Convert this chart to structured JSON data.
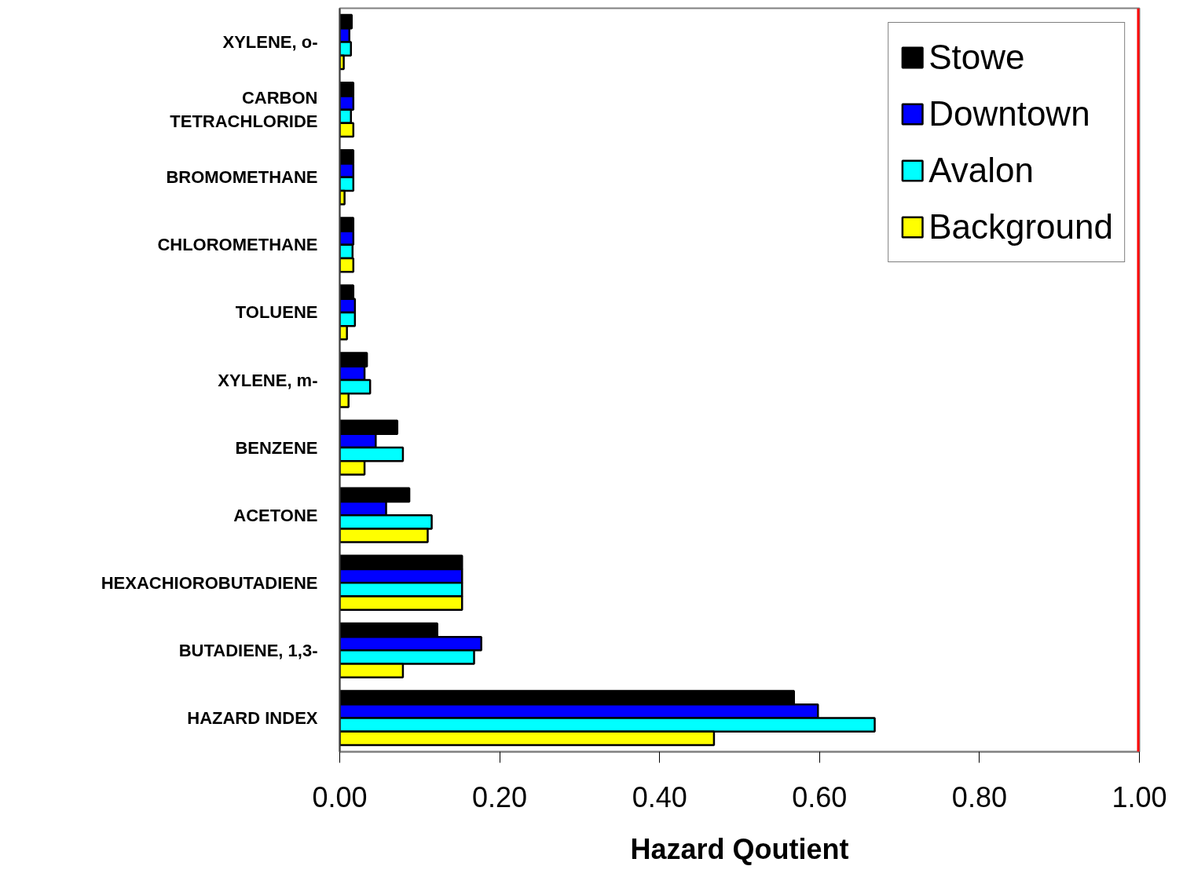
{
  "chart_data": {
    "type": "bar",
    "orientation": "horizontal",
    "xlabel": "Hazard Qoutient",
    "categories": [
      "XYLENE, o-",
      "CARBON TETRACHLORIDE",
      "BROMOMETHANE",
      "CHLOROMETHANE",
      "TOLUENE",
      "XYLENE, m-",
      "BENZENE",
      "ACETONE",
      "HEXACHIOROBUTADIENE",
      "BUTADIENE, 1,3-",
      "HAZARD INDEX"
    ],
    "series": [
      {
        "name": "Stowe",
        "color": "#000000",
        "values": [
          0.015,
          0.017,
          0.017,
          0.017,
          0.017,
          0.034,
          0.072,
          0.087,
          0.153,
          0.122,
          0.568
        ]
      },
      {
        "name": "Downtown",
        "color": "#0000ff",
        "values": [
          0.012,
          0.017,
          0.017,
          0.017,
          0.019,
          0.031,
          0.045,
          0.058,
          0.153,
          0.177,
          0.598
        ]
      },
      {
        "name": "Avalon",
        "color": "#00ffff",
        "values": [
          0.014,
          0.014,
          0.017,
          0.016,
          0.019,
          0.038,
          0.079,
          0.115,
          0.153,
          0.168,
          0.669
        ]
      },
      {
        "name": "Background",
        "color": "#ffff00",
        "values": [
          0.005,
          0.017,
          0.006,
          0.017,
          0.009,
          0.011,
          0.031,
          0.11,
          0.153,
          0.079,
          0.468
        ]
      }
    ],
    "xlim": [
      0,
      1.0
    ],
    "xticks": [
      {
        "value": 0,
        "label": "0.00"
      },
      {
        "value": 0.2,
        "label": "0.20"
      },
      {
        "value": 0.4,
        "label": "0.40"
      },
      {
        "value": 0.6,
        "label": "0.60"
      },
      {
        "value": 0.8,
        "label": "0.80"
      },
      {
        "value": 1.0,
        "label": "1.00"
      }
    ],
    "ref_lines": [
      {
        "axis": "x",
        "value": 1.0,
        "label": null,
        "color": "#ff0000"
      }
    ],
    "grid": false,
    "legend": "top right"
  }
}
